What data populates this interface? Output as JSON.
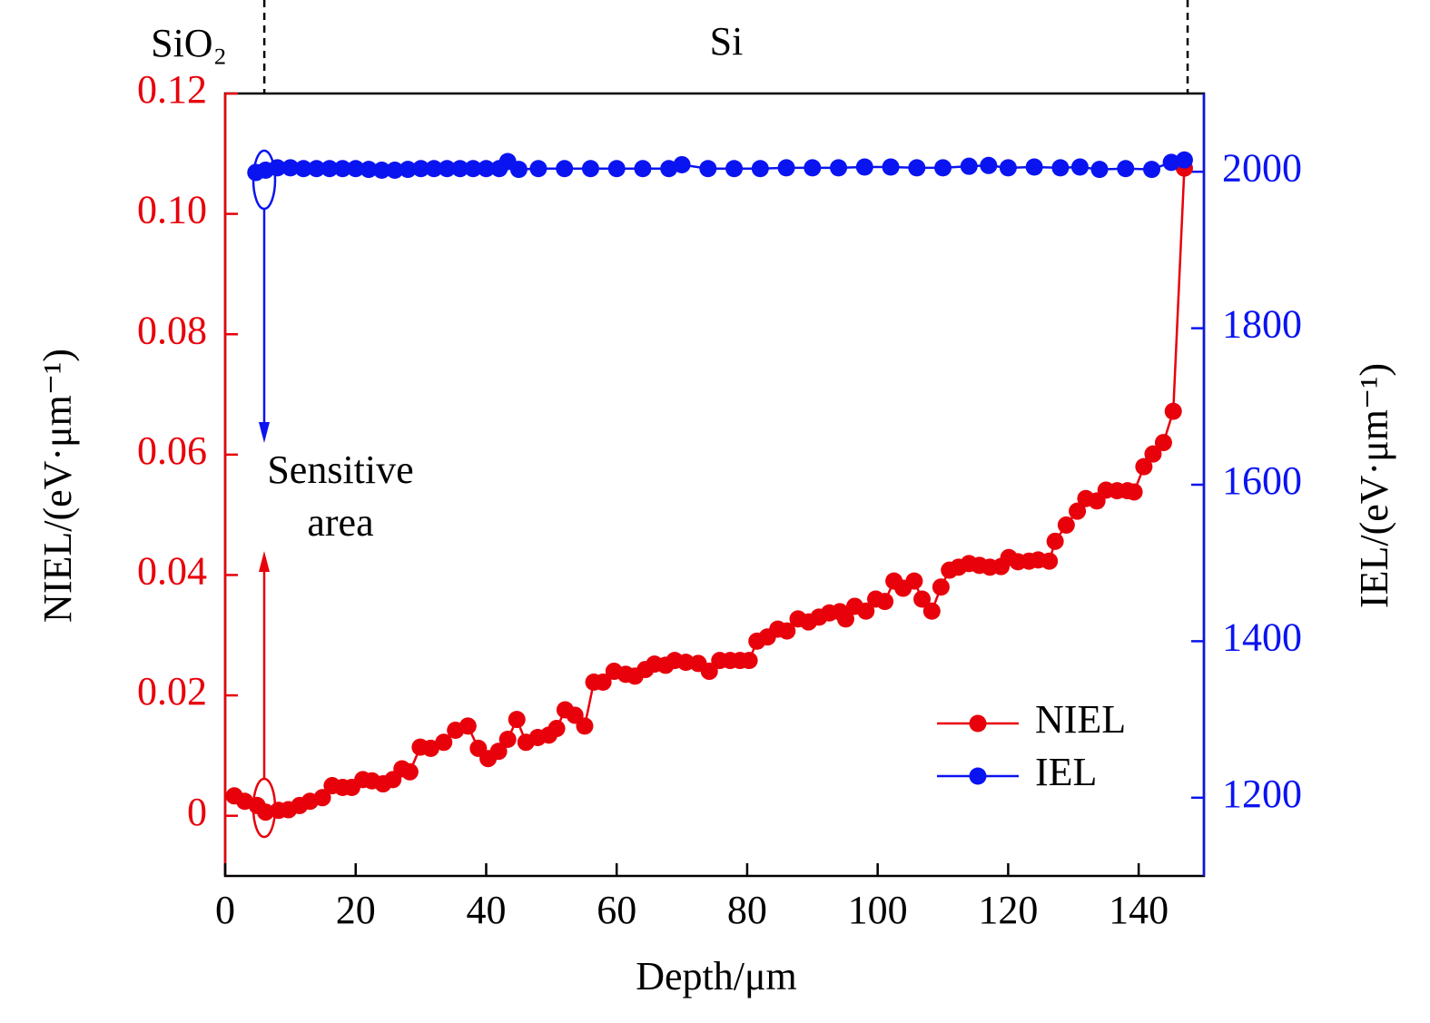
{
  "chart_data": {
    "type": "line",
    "xlabel": "Depth/μm",
    "ylabel": "NIEL/(eV·μm⁻¹)",
    "y2label": "IEL/(eV·μm⁻¹)",
    "regions": [
      {
        "label": "SiO₂"
      },
      {
        "label": "Si"
      }
    ],
    "region_boundaries": [
      6,
      147.5
    ],
    "annotation": [
      "Sensitive",
      "area"
    ],
    "xlim": [
      0,
      150
    ],
    "xticks": [
      0,
      20,
      40,
      60,
      80,
      100,
      120,
      140
    ],
    "ylim": [
      -0.01,
      0.12
    ],
    "yticks": [
      0,
      0.02,
      0.04,
      0.06,
      0.08,
      {
        "value": 0.1,
        "label": "0.10"
      },
      0.12
    ],
    "y2lim": [
      1100,
      2100
    ],
    "y2ticks": [
      1200,
      1400,
      1600,
      1800,
      2000
    ],
    "legend": "lower right",
    "series": [
      {
        "name": "NIEL",
        "color": "#e8000b",
        "axis": "y",
        "x": [
          1.4,
          3,
          4.9,
          6.2,
          8.2,
          9.7,
          11.4,
          13,
          14.9,
          16.4,
          18,
          19.4,
          21.1,
          22.5,
          24.2,
          25.7,
          27.1,
          28.3,
          29.9,
          31.5,
          33.5,
          35.3,
          37.2,
          38.8,
          40.3,
          41.9,
          43.3,
          44.7,
          46.1,
          47.9,
          49.6,
          50.8,
          52.1,
          53.6,
          55.1,
          56.5,
          57.9,
          59.6,
          61.4,
          62.8,
          64.4,
          65.8,
          67.5,
          68.9,
          70.6,
          72.5,
          74.2,
          75.8,
          77.4,
          78.9,
          80.3,
          81.5,
          83.1,
          84.7,
          86.1,
          87.8,
          89.4,
          91,
          92.6,
          94.2,
          95.1,
          96.5,
          98.2,
          99.7,
          101.1,
          102.5,
          103.9,
          105.6,
          106.8,
          108.3,
          109.7,
          111,
          112.4,
          114,
          115.6,
          117.2,
          118.9,
          120.1,
          121.5,
          123.2,
          124.6,
          126.3,
          127.2,
          128.9,
          130.6,
          131.9,
          133.6,
          135,
          136.7,
          138.3,
          139.3,
          140.8,
          142.2,
          143.8,
          145.3,
          147
        ],
        "values": [
          0.0033,
          0.0024,
          0.0017,
          0.0006,
          0.0009,
          0.001,
          0.0017,
          0.0024,
          0.003,
          0.005,
          0.0047,
          0.0047,
          0.006,
          0.0058,
          0.0053,
          0.006,
          0.0078,
          0.0073,
          0.0114,
          0.0112,
          0.0122,
          0.0142,
          0.0149,
          0.0112,
          0.0095,
          0.0107,
          0.0127,
          0.016,
          0.0122,
          0.013,
          0.0134,
          0.0145,
          0.0176,
          0.0167,
          0.0149,
          0.0222,
          0.0222,
          0.024,
          0.0235,
          0.0232,
          0.0243,
          0.0252,
          0.025,
          0.0258,
          0.0255,
          0.0253,
          0.024,
          0.0258,
          0.0258,
          0.0258,
          0.0258,
          0.029,
          0.0297,
          0.031,
          0.0307,
          0.0327,
          0.0322,
          0.033,
          0.0337,
          0.0339,
          0.0327,
          0.0348,
          0.034,
          0.036,
          0.0356,
          0.039,
          0.0378,
          0.039,
          0.036,
          0.034,
          0.038,
          0.0408,
          0.0413,
          0.0419,
          0.0416,
          0.0413,
          0.0414,
          0.0429,
          0.0422,
          0.0423,
          0.0425,
          0.0423,
          0.0456,
          0.0483,
          0.0506,
          0.0527,
          0.0523,
          0.0541,
          0.054,
          0.054,
          0.0538,
          0.058,
          0.0601,
          0.062,
          0.0672,
          0.1076
        ]
      },
      {
        "name": "IEL",
        "color": "#0a14f0",
        "axis": "y2",
        "x": [
          4.7,
          6.2,
          8,
          10,
          12,
          14,
          16,
          18,
          20,
          22,
          24,
          26,
          28,
          30,
          32,
          34,
          36,
          38,
          40,
          42,
          43.3,
          45,
          48,
          52,
          56,
          60,
          64,
          68,
          70,
          74,
          78,
          82,
          86,
          90,
          94,
          98,
          102,
          106,
          110,
          114,
          117,
          120,
          124,
          128,
          131,
          134,
          138,
          142,
          145,
          147
        ],
        "values": [
          1999,
          2002,
          2005,
          2005,
          2004,
          2004,
          2004,
          2004,
          2004,
          2003,
          2002,
          2002,
          2003,
          2004,
          2004,
          2004,
          2004,
          2004,
          2004,
          2004,
          2013,
          2003,
          2004,
          2004,
          2004,
          2004,
          2004,
          2004,
          2009,
          2004,
          2004,
          2004,
          2005,
          2005,
          2005,
          2006,
          2006,
          2005,
          2005,
          2007,
          2008,
          2005,
          2006,
          2005,
          2006,
          2003,
          2004,
          2003,
          2012,
          2015
        ]
      }
    ]
  }
}
